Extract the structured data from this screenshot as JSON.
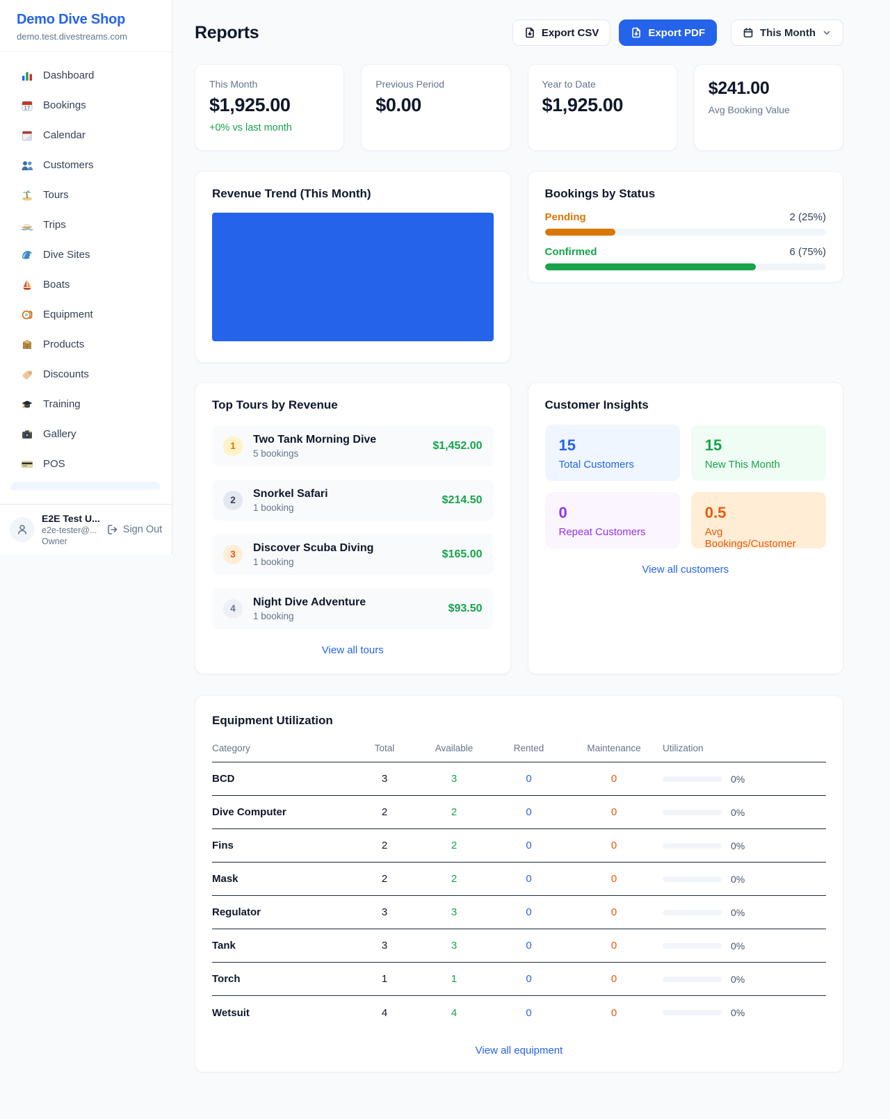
{
  "colors": {
    "accent_blue": "#2563eb",
    "success_green": "#16a34a",
    "pending_orange": "#d97706",
    "maintenance_orange": "#ea580c",
    "repeat_purple": "#9333ea",
    "page_background": "#f8fafc"
  },
  "sidebar": {
    "brand": {
      "name": "Demo Dive Shop",
      "domain": "demo.test.divestreams.com"
    },
    "nav": [
      {
        "icon": "bar-chart-icon",
        "label": "Dashboard"
      },
      {
        "icon": "calendar-date-icon",
        "label": "Bookings"
      },
      {
        "icon": "spiral-calendar-icon",
        "label": "Calendar"
      },
      {
        "icon": "people-icon",
        "label": "Customers"
      },
      {
        "icon": "island-icon",
        "label": "Tours"
      },
      {
        "icon": "speedboat-icon",
        "label": "Trips"
      },
      {
        "icon": "wave-icon",
        "label": "Dive Sites"
      },
      {
        "icon": "sailboat-icon",
        "label": "Boats"
      },
      {
        "icon": "diving-mask-icon",
        "label": "Equipment"
      },
      {
        "icon": "package-icon",
        "label": "Products"
      },
      {
        "icon": "tag-icon",
        "label": "Discounts"
      },
      {
        "icon": "graduation-cap-icon",
        "label": "Training"
      },
      {
        "icon": "camera-icon",
        "label": "Gallery"
      },
      {
        "icon": "credit-card-icon",
        "label": "POS"
      }
    ],
    "user": {
      "name": "E2E Test U...",
      "email": "e2e-tester@...",
      "role": "Owner",
      "sign_out_label": "Sign Out"
    }
  },
  "header": {
    "title": "Reports",
    "export_csv_label": "Export CSV",
    "export_pdf_label": "Export PDF",
    "period_selector": {
      "value": "This Month"
    }
  },
  "stats": [
    {
      "label": "This Month",
      "value": "$1,925.00",
      "delta": "+0% vs last month"
    },
    {
      "label": "Previous Period",
      "value": "$0.00"
    },
    {
      "label": "Year to Date",
      "value": "$1,925.00"
    },
    {
      "value": "$241.00",
      "label": "Avg Booking Value"
    }
  ],
  "revenue_trend": {
    "title": "Revenue Trend (This Month)"
  },
  "bookings_by_status": {
    "title": "Bookings by Status",
    "rows": [
      {
        "label": "Pending",
        "count_label": "2 (25%)",
        "pct": 25,
        "color": "#d97706"
      },
      {
        "label": "Confirmed",
        "count_label": "6 (75%)",
        "pct": 75,
        "color": "#16a34a"
      }
    ]
  },
  "chart_data": {
    "type": "bar",
    "title": "Bookings by Status",
    "categories": [
      "Pending",
      "Confirmed"
    ],
    "values": [
      2,
      6
    ],
    "percentages": [
      25,
      75
    ],
    "legend_position": "none",
    "grid": false
  },
  "top_tours": {
    "title": "Top Tours by Revenue",
    "items": [
      {
        "rank": "1",
        "name": "Two Tank Morning Dive",
        "bookings": "5 bookings",
        "revenue": "$1,452.00"
      },
      {
        "rank": "2",
        "name": "Snorkel Safari",
        "bookings": "1 booking",
        "revenue": "$214.50"
      },
      {
        "rank": "3",
        "name": "Discover Scuba Diving",
        "bookings": "1 booking",
        "revenue": "$165.00"
      },
      {
        "rank": "4",
        "name": "Night Dive Adventure",
        "bookings": "1 booking",
        "revenue": "$93.50"
      }
    ],
    "view_all_label": "View all tours"
  },
  "customer_insights": {
    "title": "Customer Insights",
    "tiles": [
      {
        "value": "15",
        "label": "Total Customers"
      },
      {
        "value": "15",
        "label": "New This Month"
      },
      {
        "value": "0",
        "label": "Repeat Customers"
      },
      {
        "value": "0.5",
        "label": "Avg Bookings/Customer"
      }
    ],
    "view_all_label": "View all customers"
  },
  "equipment": {
    "title": "Equipment Utilization",
    "columns": [
      "Category",
      "Total",
      "Available",
      "Rented",
      "Maintenance",
      "Utilization"
    ],
    "rows": [
      {
        "category": "BCD",
        "total": "3",
        "available": "3",
        "rented": "0",
        "maintenance": "0",
        "utilization_label": "0%",
        "utilization_pct": 0
      },
      {
        "category": "Dive Computer",
        "total": "2",
        "available": "2",
        "rented": "0",
        "maintenance": "0",
        "utilization_label": "0%",
        "utilization_pct": 0
      },
      {
        "category": "Fins",
        "total": "2",
        "available": "2",
        "rented": "0",
        "maintenance": "0",
        "utilization_label": "0%",
        "utilization_pct": 0
      },
      {
        "category": "Mask",
        "total": "2",
        "available": "2",
        "rented": "0",
        "maintenance": "0",
        "utilization_label": "0%",
        "utilization_pct": 0
      },
      {
        "category": "Regulator",
        "total": "3",
        "available": "3",
        "rented": "0",
        "maintenance": "0",
        "utilization_label": "0%",
        "utilization_pct": 0
      },
      {
        "category": "Tank",
        "total": "3",
        "available": "3",
        "rented": "0",
        "maintenance": "0",
        "utilization_label": "0%",
        "utilization_pct": 0
      },
      {
        "category": "Torch",
        "total": "1",
        "available": "1",
        "rented": "0",
        "maintenance": "0",
        "utilization_label": "0%",
        "utilization_pct": 0
      },
      {
        "category": "Wetsuit",
        "total": "4",
        "available": "4",
        "rented": "0",
        "maintenance": "0",
        "utilization_label": "0%",
        "utilization_pct": 0
      }
    ],
    "view_all_label": "View all equipment"
  }
}
